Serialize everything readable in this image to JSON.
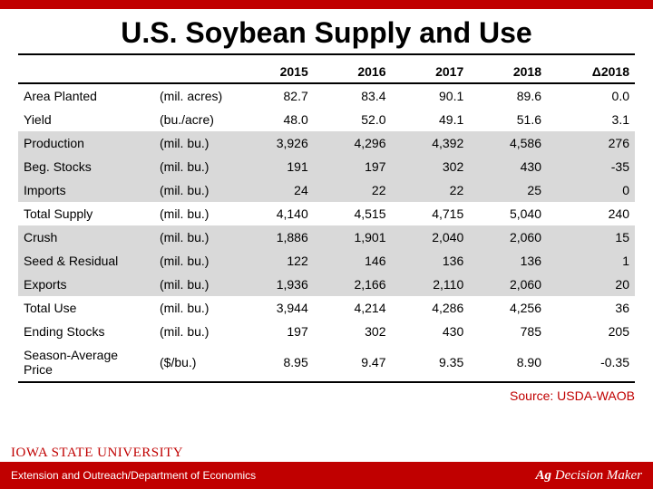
{
  "colors": {
    "brand_red": "#c00000",
    "shade_gray": "#d9d9d9",
    "text_black": "#000000",
    "background": "#ffffff"
  },
  "title": "U.S. Soybean Supply and Use",
  "columns": [
    "",
    "",
    "2015",
    "2016",
    "2017",
    "2018",
    "Δ2018"
  ],
  "rows": [
    {
      "label": "Area Planted",
      "unit": "(mil. acres)",
      "vals": [
        "82.7",
        "83.4",
        "90.1",
        "89.6",
        "0.0"
      ],
      "shaded": false
    },
    {
      "label": "Yield",
      "unit": "(bu./acre)",
      "vals": [
        "48.0",
        "52.0",
        "49.1",
        "51.6",
        "3.1"
      ],
      "shaded": false
    },
    {
      "label": "Production",
      "unit": "(mil. bu.)",
      "vals": [
        "3,926",
        "4,296",
        "4,392",
        "4,586",
        "276"
      ],
      "shaded": true
    },
    {
      "label": "Beg. Stocks",
      "unit": "(mil. bu.)",
      "vals": [
        "191",
        "197",
        "302",
        "430",
        "-35"
      ],
      "shaded": true
    },
    {
      "label": "Imports",
      "unit": "(mil. bu.)",
      "vals": [
        "24",
        "22",
        "22",
        "25",
        "0"
      ],
      "shaded": true
    },
    {
      "label": "Total Supply",
      "unit": "(mil. bu.)",
      "vals": [
        "4,140",
        "4,515",
        "4,715",
        "5,040",
        "240"
      ],
      "shaded": false
    },
    {
      "label": "Crush",
      "unit": "(mil. bu.)",
      "vals": [
        "1,886",
        "1,901",
        "2,040",
        "2,060",
        "15"
      ],
      "shaded": true
    },
    {
      "label": "Seed & Residual",
      "unit": "(mil. bu.)",
      "vals": [
        "122",
        "146",
        "136",
        "136",
        "1"
      ],
      "shaded": true
    },
    {
      "label": "Exports",
      "unit": "(mil. bu.)",
      "vals": [
        "1,936",
        "2,166",
        "2,110",
        "2,060",
        "20"
      ],
      "shaded": true
    },
    {
      "label": "Total Use",
      "unit": "(mil. bu.)",
      "vals": [
        "3,944",
        "4,214",
        "4,286",
        "4,256",
        "36"
      ],
      "shaded": false
    },
    {
      "label": "Ending Stocks",
      "unit": "(mil. bu.)",
      "vals": [
        "197",
        "302",
        "430",
        "785",
        "205"
      ],
      "shaded": false
    },
    {
      "label": "Season-Average Price",
      "unit": "($/bu.)",
      "vals": [
        "8.95",
        "9.47",
        "9.35",
        "8.90",
        "-0.35"
      ],
      "shaded": false
    }
  ],
  "source": "Source: USDA-WAOB",
  "logo_text": "IOWA STATE UNIVERSITY",
  "footer_left": "Extension and Outreach/Department of Economics",
  "footer_right_ag": "Ag",
  "footer_right_rest": " Decision Maker"
}
